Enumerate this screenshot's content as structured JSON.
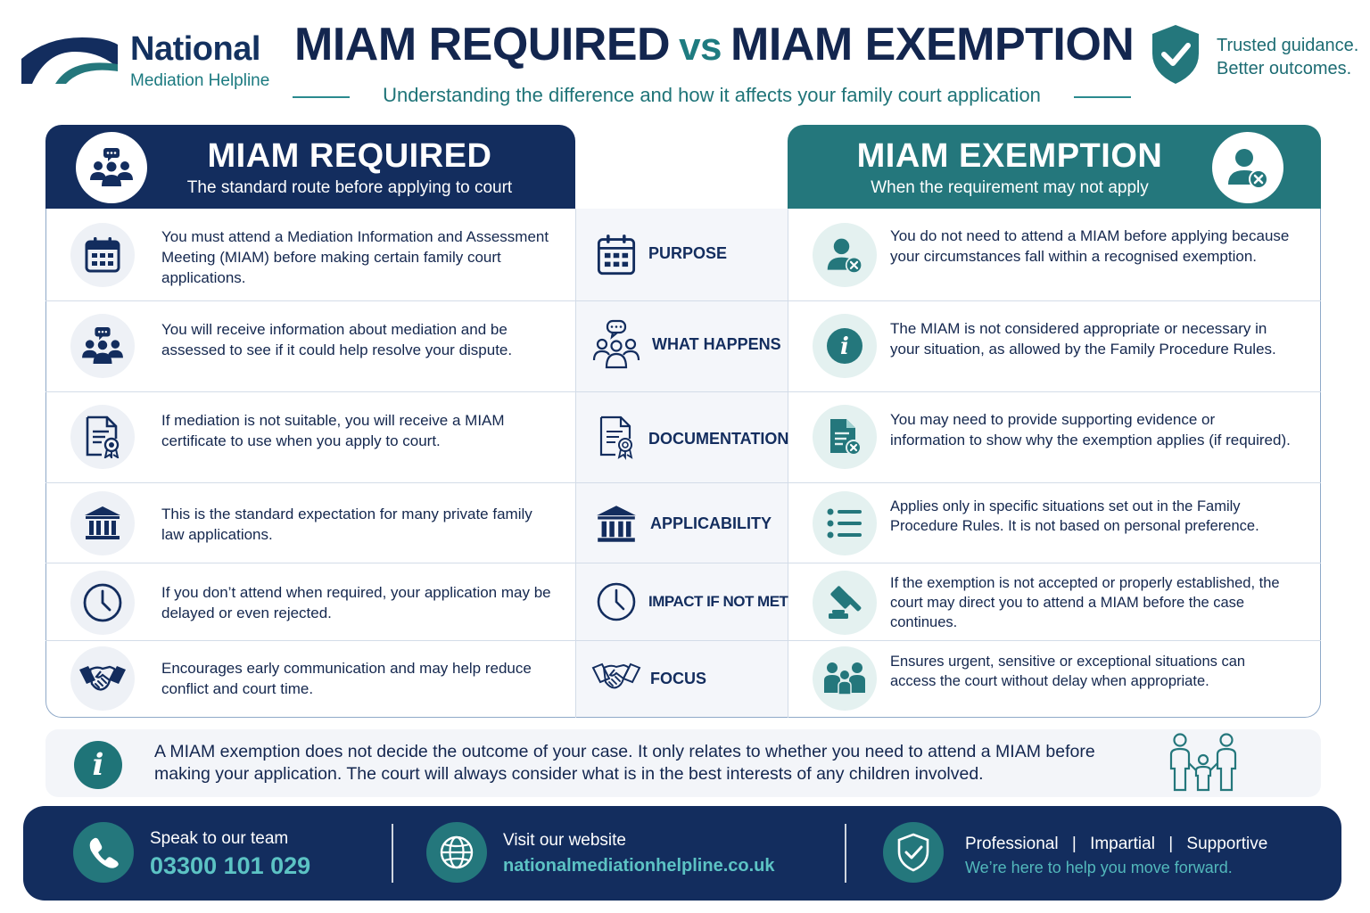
{
  "brand": {
    "name": "National",
    "sub": "Mediation Helpline"
  },
  "header": {
    "title_left": "MIAM REQUIRED",
    "title_vs": "vs",
    "title_right": "MIAM EXEMPTION",
    "subtitle": "Understanding the difference and how it affects your family court application",
    "trust_line1": "Trusted guidance.",
    "trust_line2": "Better outcomes."
  },
  "columns": {
    "required": {
      "title": "MIAM REQUIRED",
      "subtitle": "The standard route before applying to court",
      "icon": "group-chat-icon"
    },
    "exemption": {
      "title": "MIAM EXEMPTION",
      "subtitle": "When the requirement may not apply",
      "icon": "person-x-icon"
    }
  },
  "rows": [
    {
      "label": "PURPOSE",
      "required": "You must attend a Mediation Information and Assessment Meeting (MIAM) before making certain family court applications.",
      "exemption": "You do not need to attend a MIAM before applying because your circumstances fall within a recognised exemption.",
      "left_icon": "calendar-icon",
      "mid_icon": "calendar-icon",
      "right_icon": "person-x-icon"
    },
    {
      "label": "WHAT HAPPENS",
      "required": "You will receive information about mediation and be assessed to see if it could help resolve your dispute.",
      "exemption": "The MIAM is not considered appropriate or necessary in your situation, as allowed by the Family Procedure Rules.",
      "left_icon": "group-chat-icon",
      "mid_icon": "group-chat-icon",
      "right_icon": "info-icon"
    },
    {
      "label": "DOCUMENTATION",
      "required": "If mediation is not suitable, you will receive a MIAM certificate to use when you apply to court.",
      "exemption": "You may need to provide supporting evidence or information to show why the exemption applies (if required).",
      "left_icon": "certificate-icon",
      "mid_icon": "certificate-icon",
      "right_icon": "document-x-icon"
    },
    {
      "label": "APPLICABILITY",
      "required": "This is the standard expectation for many private family law applications.",
      "exemption": "Applies only in specific situations set out in the Family Procedure Rules. It is not based on personal preference.",
      "left_icon": "courthouse-icon",
      "mid_icon": "courthouse-icon",
      "right_icon": "list-icon"
    },
    {
      "label": "IMPACT IF NOT MET",
      "required": "If you don’t attend when required, your application may be delayed or even rejected.",
      "exemption": "If the exemption is not accepted or properly established, the court may direct you to attend a MIAM before the case continues.",
      "left_icon": "clock-icon",
      "mid_icon": "clock-icon",
      "right_icon": "gavel-icon"
    },
    {
      "label": "FOCUS",
      "required": "Encourages early communication and may help reduce conflict and court time.",
      "exemption": "Ensures urgent, sensitive or exceptional situations can access the court without delay when appropriate.",
      "left_icon": "handshake-icon",
      "mid_icon": "handshake-icon",
      "right_icon": "family-icon"
    }
  ],
  "note": {
    "text": "A MIAM exemption does not decide the outcome of your case. It only relates to whether you need to attend a MIAM before making your application. The court will always consider what is in the best interests of any children involved.",
    "icon_glyph": "i"
  },
  "footer": {
    "phone_label": "Speak to our team",
    "phone_number": "03300 101 029",
    "web_label": "Visit our website",
    "web_url": "nationalmediationhelpline.co.uk",
    "values": [
      "Professional",
      "|",
      "Impartial",
      "|",
      "Supportive"
    ],
    "tagline": "We’re here to help you move forward."
  },
  "colors": {
    "navy": "#132d5e",
    "teal": "#24777c",
    "teal_light": "#5cc3c4",
    "ink": "#14274e"
  }
}
